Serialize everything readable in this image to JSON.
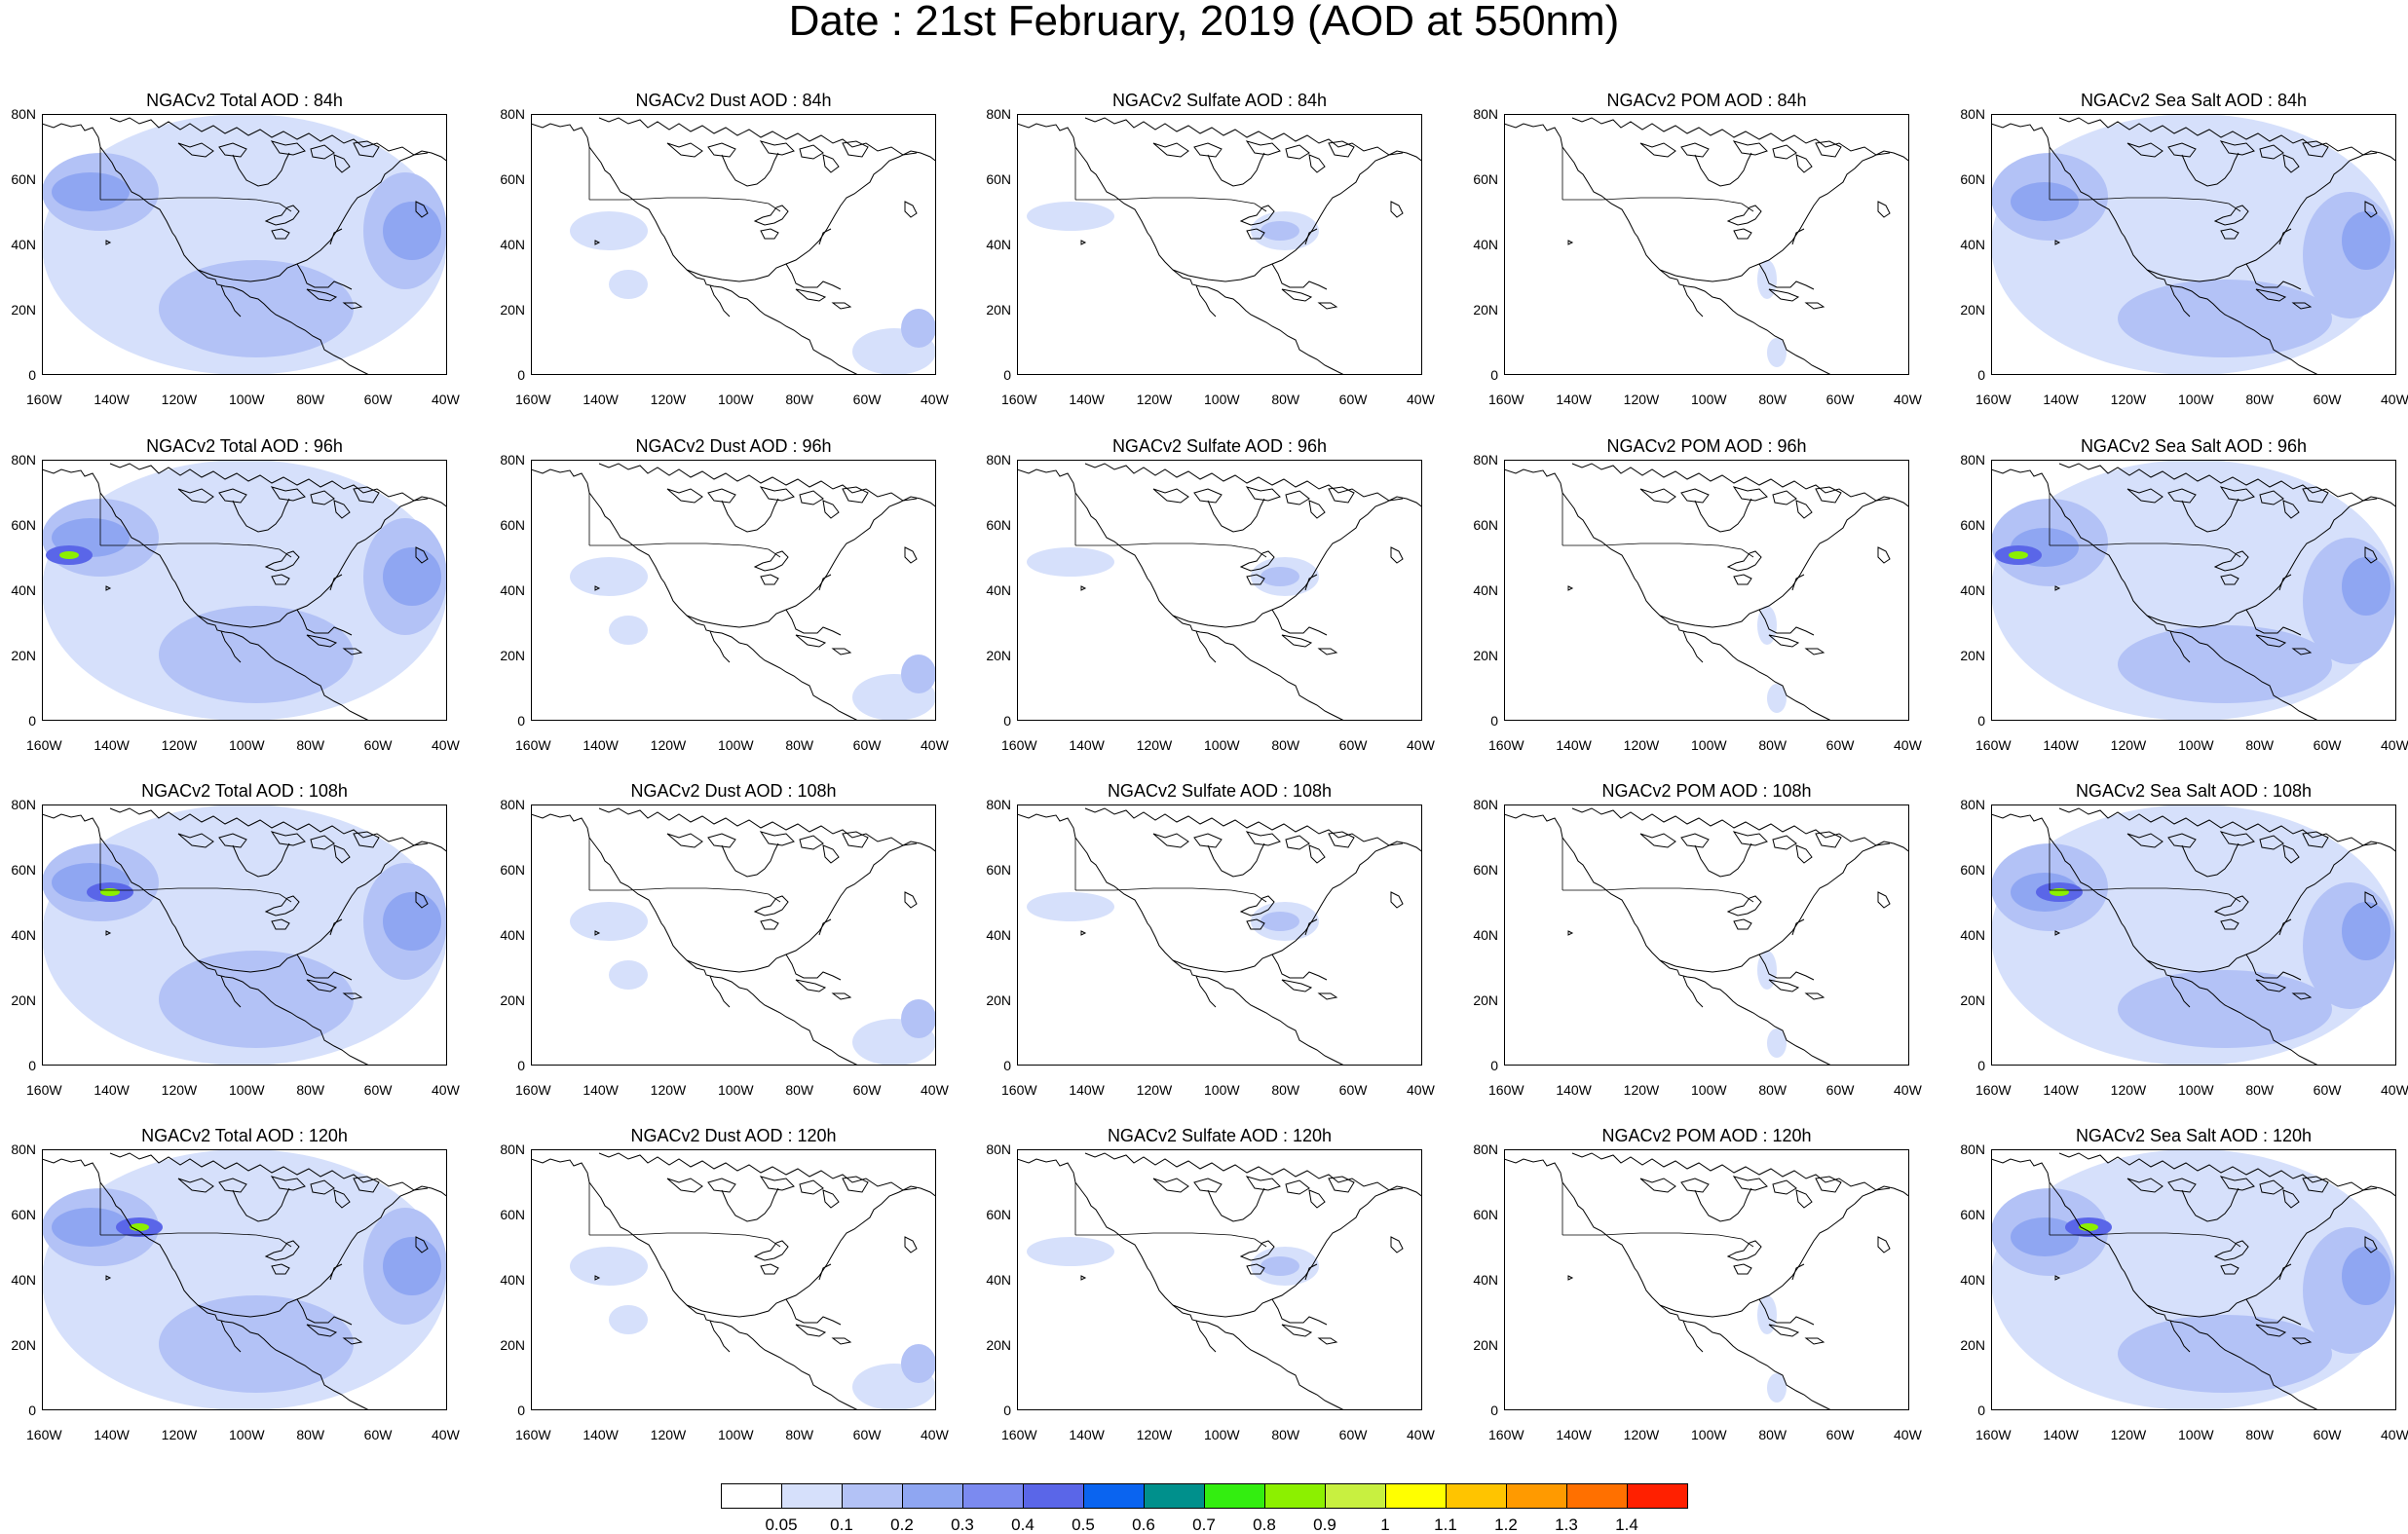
{
  "title": "Date : 21st February, 2019 (AOD at 550nm)",
  "panel_titles": [
    [
      "NGACv2 Total AOD : 84h",
      "NGACv2 Dust AOD : 84h",
      "NGACv2 Sulfate AOD : 84h",
      "NGACv2 POM AOD : 84h",
      "NGACv2 Sea Salt AOD : 84h"
    ],
    [
      "NGACv2 Total AOD : 96h",
      "NGACv2 Dust AOD : 96h",
      "NGACv2 Sulfate AOD : 96h",
      "NGACv2 POM AOD : 96h",
      "NGACv2 Sea Salt AOD : 96h"
    ],
    [
      "NGACv2 Total AOD : 108h",
      "NGACv2 Dust AOD : 108h",
      "NGACv2 Sulfate AOD : 108h",
      "NGACv2 POM AOD : 108h",
      "NGACv2 Sea Salt AOD : 108h"
    ],
    [
      "NGACv2 Total AOD : 120h",
      "NGACv2 Dust AOD : 120h",
      "NGACv2 Sulfate AOD : 120h",
      "NGACv2 POM AOD : 120h",
      "NGACv2 Sea Salt  AOD : 120h"
    ]
  ],
  "lat_labels": [
    "80N",
    "60N",
    "40N",
    "20N",
    "0"
  ],
  "lon_labels": [
    "160W",
    "140W",
    "120W",
    "100W",
    "80W",
    "60W",
    "40W"
  ],
  "colorbar": {
    "labels": [
      "0.05",
      "0.1",
      "0.2",
      "0.3",
      "0.4",
      "0.5",
      "0.6",
      "0.7",
      "0.8",
      "0.9",
      "1",
      "1.1",
      "1.2",
      "1.3",
      "1.4"
    ],
    "colors": [
      "#ffffff",
      "#d6e0fb",
      "#b3c2f6",
      "#8fa6f2",
      "#7b8af0",
      "#5a66e8",
      "#0a64f0",
      "#00908c",
      "#33ee10",
      "#8cf000",
      "#c8f040",
      "#ffff00",
      "#ffc400",
      "#ff9a00",
      "#ff7000",
      "#ff2000"
    ]
  }
}
